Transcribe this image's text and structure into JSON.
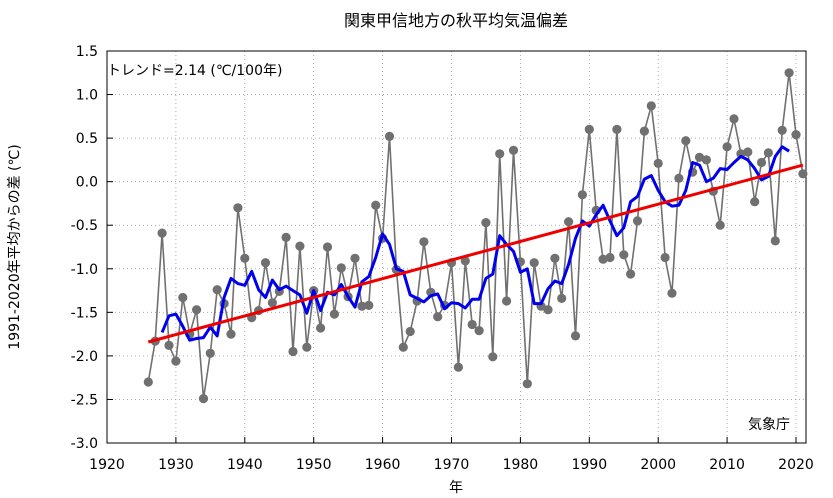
{
  "chart_data": {
    "type": "line",
    "title": "関東甲信地方の秋平均気温偏差",
    "xlabel": "年",
    "ylabel": "1991-2020年平均からの差 (℃)",
    "xlim": [
      1920,
      2022
    ],
    "ylim": [
      -3.0,
      1.5
    ],
    "x_ticks": [
      1920,
      1930,
      1940,
      1950,
      1960,
      1970,
      1980,
      1990,
      2000,
      2010,
      2020
    ],
    "x_tick_labels": [
      "1920",
      "1930",
      "1940",
      "1950",
      "1960",
      "1970",
      "1980",
      "1990",
      "2000",
      "2010",
      "2020"
    ],
    "y_ticks": [
      -3.0,
      -2.5,
      -2.0,
      -1.5,
      -1.0,
      -0.5,
      0.0,
      0.5,
      1.0,
      1.5
    ],
    "y_tick_labels": [
      "-3.0",
      "-2.5",
      "-2.0",
      "-1.5",
      "-1.0",
      "-0.5",
      "0.0",
      "0.5",
      "1.0",
      "1.5"
    ],
    "grid": true,
    "trend_label": "トレンド=2.14 (℃/100年)",
    "source_label": "気象庁",
    "colors": {
      "annual": "#707070",
      "moving_average": "#0000ee",
      "trend": "#ee0000",
      "grid": "#999999"
    },
    "series": [
      {
        "kind": "annual",
        "x": [
          1926,
          1927,
          1928,
          1929,
          1930,
          1931,
          1932,
          1933,
          1934,
          1935,
          1936,
          1937,
          1938,
          1939,
          1940,
          1941,
          1942,
          1943,
          1944,
          1945,
          1946,
          1947,
          1948,
          1949,
          1950,
          1951,
          1952,
          1953,
          1954,
          1955,
          1956,
          1957,
          1958,
          1959,
          1960,
          1961,
          1962,
          1963,
          1964,
          1965,
          1966,
          1967,
          1968,
          1969,
          1970,
          1971,
          1972,
          1973,
          1974,
          1975,
          1976,
          1977,
          1978,
          1979,
          1980,
          1981,
          1982,
          1983,
          1984,
          1985,
          1986,
          1987,
          1988,
          1989,
          1990,
          1991,
          1992,
          1993,
          1994,
          1995,
          1996,
          1997,
          1998,
          1999,
          2000,
          2001,
          2002,
          2003,
          2004,
          2005,
          2006,
          2007,
          2008,
          2009,
          2010,
          2011,
          2012,
          2013,
          2014,
          2015,
          2016,
          2017,
          2018,
          2019,
          2020,
          2021
        ],
        "values": [
          -2.3,
          -1.83,
          -0.59,
          -1.88,
          -2.06,
          -1.33,
          -1.75,
          -1.47,
          -2.49,
          -1.97,
          -1.24,
          -1.4,
          -1.75,
          -0.3,
          -0.88,
          -1.56,
          -1.48,
          -0.93,
          -1.39,
          -1.26,
          -0.64,
          -1.95,
          -0.74,
          -1.9,
          -1.25,
          -1.68,
          -0.75,
          -1.52,
          -0.99,
          -1.32,
          -0.88,
          -1.43,
          -1.42,
          -0.27,
          -0.65,
          0.52,
          -1.01,
          -1.9,
          -1.72,
          -1.37,
          -0.69,
          -1.27,
          -1.55,
          -1.42,
          -0.93,
          -2.13,
          -0.91,
          -1.64,
          -1.71,
          -0.47,
          -2.01,
          0.32,
          -1.37,
          0.36,
          -0.92,
          -2.32,
          -0.93,
          -1.43,
          -1.47,
          -0.88,
          -1.34,
          -0.46,
          -1.77,
          -0.15,
          0.6,
          -0.33,
          -0.89,
          -0.87,
          0.6,
          -0.84,
          -1.06,
          -0.45,
          0.58,
          0.87,
          0.21,
          -0.87,
          -1.28,
          0.04,
          0.47,
          0.11,
          0.28,
          0.25,
          -0.11,
          -0.5,
          0.4,
          0.72,
          0.32,
          0.34,
          -0.23,
          0.22,
          0.33,
          -0.68,
          0.59,
          1.25,
          0.54,
          0.09
        ]
      },
      {
        "kind": "moving_average",
        "x": [
          1928,
          1929,
          1930,
          1931,
          1932,
          1933,
          1934,
          1935,
          1936,
          1937,
          1938,
          1939,
          1940,
          1941,
          1942,
          1943,
          1944,
          1945,
          1946,
          1947,
          1948,
          1949,
          1950,
          1951,
          1952,
          1953,
          1954,
          1955,
          1956,
          1957,
          1958,
          1959,
          1960,
          1961,
          1962,
          1963,
          1964,
          1965,
          1966,
          1967,
          1968,
          1969,
          1970,
          1971,
          1972,
          1973,
          1974,
          1975,
          1976,
          1977,
          1978,
          1979,
          1980,
          1981,
          1982,
          1983,
          1984,
          1985,
          1986,
          1987,
          1988,
          1989,
          1990,
          1991,
          1992,
          1993,
          1994,
          1995,
          1996,
          1997,
          1998,
          1999,
          2000,
          2001,
          2002,
          2003,
          2004,
          2005,
          2006,
          2007,
          2008,
          2009,
          2010,
          2011,
          2012,
          2013,
          2014,
          2015,
          2016,
          2017,
          2018,
          2019
        ],
        "values": [
          -1.73,
          -1.54,
          -1.52,
          -1.66,
          -1.82,
          -1.8,
          -1.79,
          -1.67,
          -1.77,
          -1.33,
          -1.11,
          -1.17,
          -1.19,
          -1.03,
          -1.24,
          -1.33,
          -1.13,
          -1.24,
          -1.2,
          -1.25,
          -1.3,
          -1.51,
          -1.25,
          -1.48,
          -1.27,
          -1.3,
          -1.18,
          -1.32,
          -1.44,
          -1.15,
          -1.09,
          -0.87,
          -0.6,
          -0.72,
          -1.0,
          -1.03,
          -1.3,
          -1.34,
          -1.38,
          -1.31,
          -1.29,
          -1.46,
          -1.39,
          -1.4,
          -1.45,
          -1.35,
          -1.35,
          -1.11,
          -1.06,
          -0.62,
          -0.72,
          -0.8,
          -1.04,
          -1.0,
          -1.4,
          -1.4,
          -1.23,
          -1.14,
          -1.17,
          -0.95,
          -0.65,
          -0.45,
          -0.51,
          -0.38,
          -0.27,
          -0.45,
          -0.62,
          -0.53,
          -0.23,
          -0.17,
          0.03,
          0.07,
          -0.1,
          -0.23,
          -0.28,
          -0.27,
          -0.1,
          0.22,
          0.19,
          0.0,
          0.04,
          0.15,
          0.14,
          0.22,
          0.29,
          0.25,
          0.15,
          0.02,
          0.06,
          0.29,
          0.4,
          0.35
        ]
      },
      {
        "kind": "trend",
        "x": [
          1926,
          2021
        ],
        "values": [
          -1.84,
          0.19
        ]
      }
    ]
  }
}
